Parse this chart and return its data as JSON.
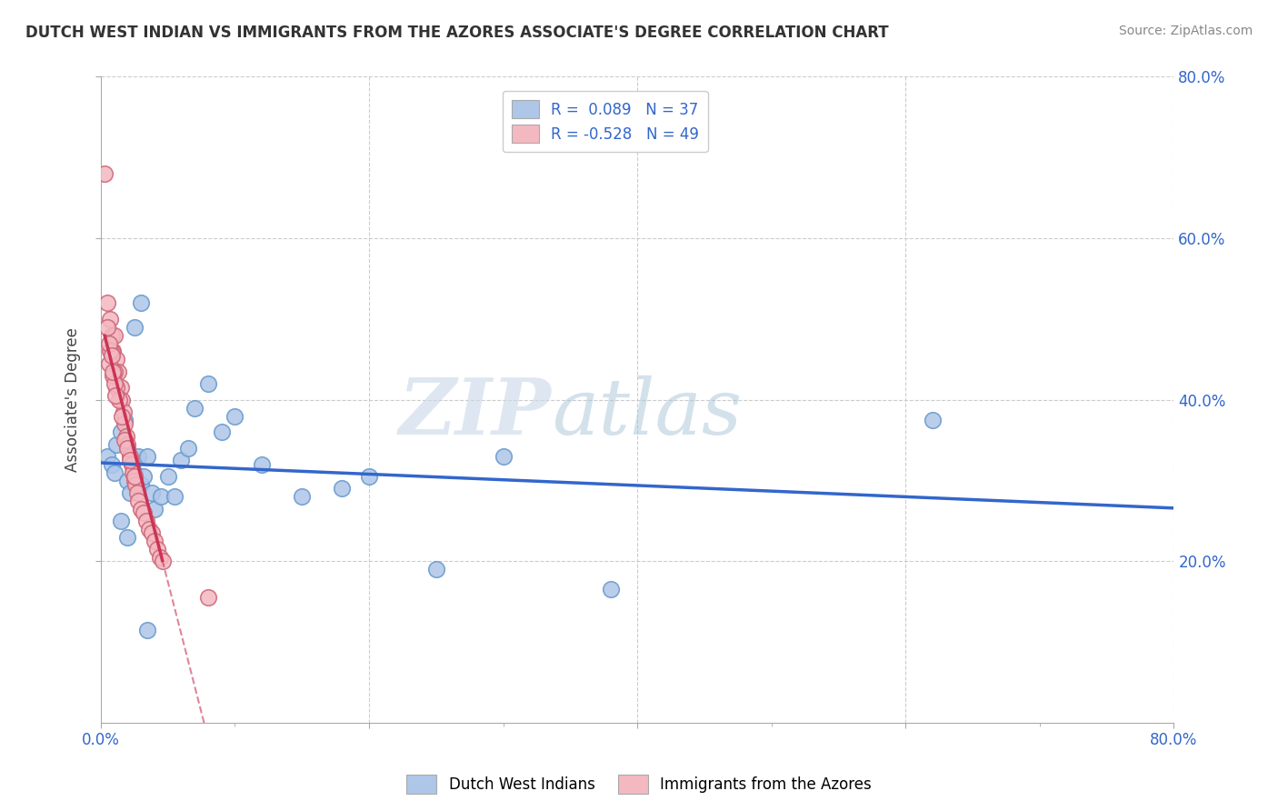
{
  "title": "DUTCH WEST INDIAN VS IMMIGRANTS FROM THE AZORES ASSOCIATE'S DEGREE CORRELATION CHART",
  "source": "Source: ZipAtlas.com",
  "ylabel": "Associate's Degree",
  "xlim": [
    0.0,
    0.8
  ],
  "ylim": [
    0.0,
    0.8
  ],
  "xtick_values": [
    0.0,
    0.2,
    0.4,
    0.6,
    0.8
  ],
  "ytick_values": [
    0.2,
    0.4,
    0.6,
    0.8
  ],
  "series1_color": "#aec6e8",
  "series1_edge": "#6699cc",
  "series2_color": "#f4b8c1",
  "series2_edge": "#cc6677",
  "line1_color": "#3366cc",
  "line2_color": "#cc3355",
  "background_color": "#ffffff",
  "grid_color": "#cccccc",
  "watermark_left": "ZIP",
  "watermark_right": "atlas",
  "title_color": "#333333",
  "series1_name": "Dutch West Indians",
  "series2_name": "Immigrants from the Azores",
  "dutch_x": [
    0.005,
    0.008,
    0.01,
    0.012,
    0.015,
    0.018,
    0.02,
    0.022,
    0.025,
    0.028,
    0.03,
    0.032,
    0.035,
    0.038,
    0.04,
    0.045,
    0.05,
    0.055,
    0.06,
    0.065,
    0.07,
    0.08,
    0.09,
    0.1,
    0.12,
    0.15,
    0.18,
    0.2,
    0.25,
    0.62,
    0.015,
    0.02,
    0.025,
    0.03,
    0.035,
    0.3,
    0.38
  ],
  "dutch_y": [
    0.33,
    0.32,
    0.31,
    0.345,
    0.36,
    0.375,
    0.3,
    0.285,
    0.31,
    0.33,
    0.295,
    0.305,
    0.33,
    0.285,
    0.265,
    0.28,
    0.305,
    0.28,
    0.325,
    0.34,
    0.39,
    0.42,
    0.36,
    0.38,
    0.32,
    0.28,
    0.29,
    0.305,
    0.19,
    0.375,
    0.25,
    0.23,
    0.49,
    0.52,
    0.115,
    0.33,
    0.165
  ],
  "azores_x": [
    0.003,
    0.005,
    0.007,
    0.008,
    0.009,
    0.01,
    0.012,
    0.013,
    0.015,
    0.016,
    0.017,
    0.018,
    0.019,
    0.02,
    0.022,
    0.023,
    0.024,
    0.025,
    0.026,
    0.027,
    0.028,
    0.03,
    0.032,
    0.034,
    0.036,
    0.038,
    0.04,
    0.042,
    0.044,
    0.046,
    0.008,
    0.01,
    0.012,
    0.014,
    0.016,
    0.006,
    0.007,
    0.009,
    0.01,
    0.011,
    0.018,
    0.02,
    0.022,
    0.025,
    0.005,
    0.006,
    0.08,
    0.008,
    0.009
  ],
  "azores_y": [
    0.68,
    0.52,
    0.5,
    0.48,
    0.46,
    0.48,
    0.45,
    0.435,
    0.415,
    0.4,
    0.385,
    0.37,
    0.355,
    0.345,
    0.33,
    0.32,
    0.31,
    0.3,
    0.295,
    0.285,
    0.275,
    0.265,
    0.26,
    0.25,
    0.24,
    0.235,
    0.225,
    0.215,
    0.205,
    0.2,
    0.46,
    0.435,
    0.415,
    0.4,
    0.38,
    0.445,
    0.46,
    0.43,
    0.42,
    0.405,
    0.35,
    0.34,
    0.325,
    0.305,
    0.49,
    0.47,
    0.155,
    0.455,
    0.435
  ]
}
